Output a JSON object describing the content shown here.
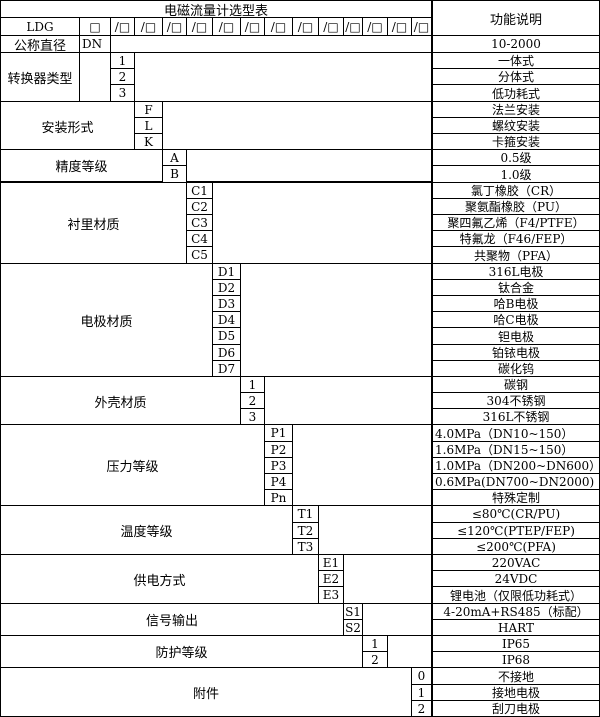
{
  "title": "电磁流量计选型表",
  "function_header": "功能说明",
  "model_row": {
    "prefix": "LDG",
    "first_box": "□",
    "slots": [
      "/□",
      "/□",
      "/□",
      "/□",
      "/□",
      "/□",
      "/□",
      "/□",
      "/□",
      "/□",
      "/□",
      "/□",
      "/□"
    ]
  },
  "nominal_diameter": {
    "label": "公称直径",
    "code": "DN",
    "desc": "10-2000"
  },
  "sections": [
    {
      "label": "转换器类型",
      "options": [
        {
          "code": "1",
          "desc": "一体式"
        },
        {
          "code": "2",
          "desc": "分体式"
        },
        {
          "code": "3",
          "desc": "低功耗式"
        }
      ]
    },
    {
      "label": "安装形式",
      "options": [
        {
          "code": "F",
          "desc": "法兰安装"
        },
        {
          "code": "L",
          "desc": "螺纹安装"
        },
        {
          "code": "K",
          "desc": "卡箍安装"
        }
      ]
    },
    {
      "label": "精度等级",
      "options": [
        {
          "code": "A",
          "desc": "0.5级"
        },
        {
          "code": "B",
          "desc": "1.0级"
        }
      ]
    },
    {
      "label": "衬里材质",
      "options": [
        {
          "code": "C1",
          "desc": "氯丁橡胶（CR）"
        },
        {
          "code": "C2",
          "desc": "聚氨酯橡胶（PU）"
        },
        {
          "code": "C3",
          "desc": "聚四氟乙烯（F4/PTFE）"
        },
        {
          "code": "C4",
          "desc": "特氟龙（F46/FEP）"
        },
        {
          "code": "C5",
          "desc": "共聚物（PFA）"
        }
      ]
    },
    {
      "label": "电极材质",
      "options": [
        {
          "code": "D1",
          "desc": "316L电极"
        },
        {
          "code": "D2",
          "desc": "钛合金"
        },
        {
          "code": "D3",
          "desc": "哈B电极"
        },
        {
          "code": "D4",
          "desc": "哈C电极"
        },
        {
          "code": "D5",
          "desc": "钽电极"
        },
        {
          "code": "D6",
          "desc": "铂铱电极"
        },
        {
          "code": "D7",
          "desc": "碳化钨"
        }
      ]
    },
    {
      "label": "外壳材质",
      "options": [
        {
          "code": "1",
          "desc": "碳钢"
        },
        {
          "code": "2",
          "desc": "304不锈钢"
        },
        {
          "code": "3",
          "desc": "316L不锈钢"
        }
      ]
    },
    {
      "label": "压力等级",
      "options": [
        {
          "code": "P1",
          "desc": "4.0MPa（DN10~150）"
        },
        {
          "code": "P2",
          "desc": "1.6MPa（DN15~150）"
        },
        {
          "code": "P3",
          "desc": "1.0MPa（DN200~DN600）"
        },
        {
          "code": "P4",
          "desc": "0.6MPa(DN700~DN2000)"
        },
        {
          "code": "Pn",
          "desc": "特殊定制"
        }
      ]
    },
    {
      "label": "温度等级",
      "options": [
        {
          "code": "T1",
          "desc": "≤80℃(CR/PU)"
        },
        {
          "code": "T2",
          "desc": "≤120℃(PTEP/FEP)"
        },
        {
          "code": "T3",
          "desc": "≤200℃(PFA)"
        }
      ]
    },
    {
      "label": "供电方式",
      "options": [
        {
          "code": "E1",
          "desc": "220VAC"
        },
        {
          "code": "E2",
          "desc": "24VDC"
        },
        {
          "code": "E3",
          "desc": "锂电池（仅限低功耗式）"
        }
      ]
    },
    {
      "label": "信号输出",
      "options": [
        {
          "code": "S1",
          "desc": "4-20mA+RS485（标配）"
        },
        {
          "code": "S2",
          "desc": "HART"
        }
      ]
    },
    {
      "label": "防护等级",
      "options": [
        {
          "code": "1",
          "desc": "IP65"
        },
        {
          "code": "2",
          "desc": "IP68"
        }
      ]
    },
    {
      "label": "附件",
      "options": [
        {
          "code": "0",
          "desc": "不接地"
        },
        {
          "code": "1",
          "desc": "接地电极"
        },
        {
          "code": "2",
          "desc": "刮刀电极"
        }
      ]
    }
  ]
}
